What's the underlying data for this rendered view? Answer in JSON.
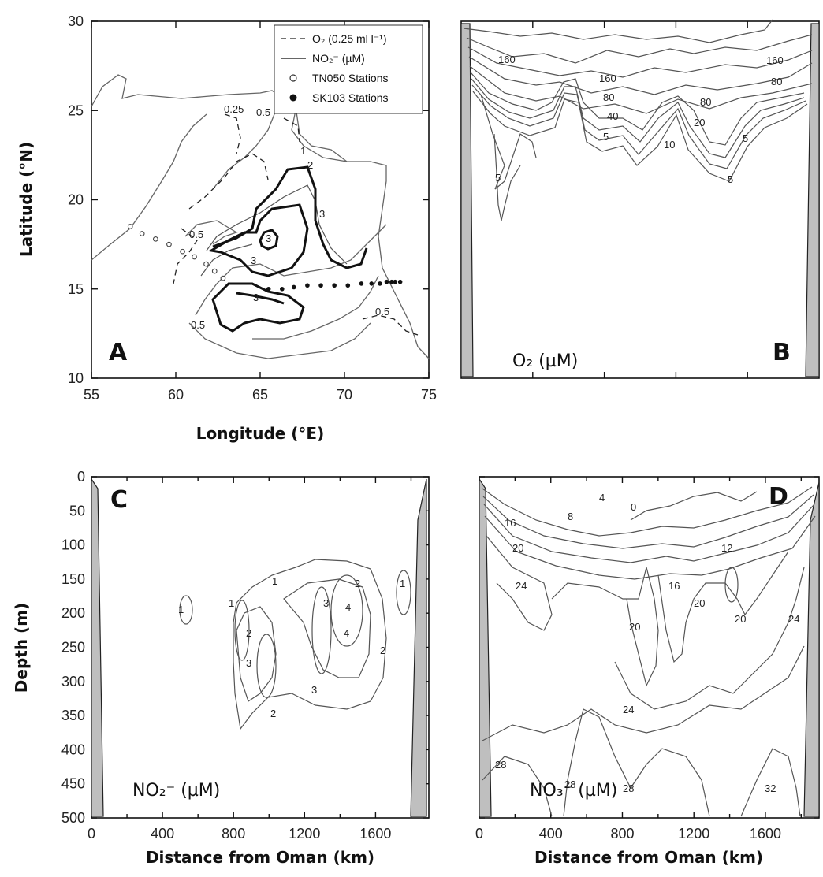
{
  "chart_data": [
    {
      "panel": "A",
      "type": "map",
      "xlabel": "Longitude (°E)",
      "ylabel": "Latitude (°N)",
      "xlim": [
        55,
        75
      ],
      "ylim": [
        10,
        30
      ],
      "xticks": [
        "55",
        "60",
        "65",
        "70",
        "75"
      ],
      "yticks": [
        "10",
        "15",
        "20",
        "25",
        "30"
      ],
      "legend": {
        "placement": "top-right",
        "entries": [
          {
            "symbol": "dashed-line",
            "label": "O₂ (0.25 ml l⁻¹)"
          },
          {
            "symbol": "solid-line",
            "label": "NO₂⁻ (µM)"
          },
          {
            "symbol": "open-circle",
            "label": "TN050 Stations"
          },
          {
            "symbol": "filled-circle",
            "label": "SK103 Stations"
          }
        ]
      },
      "contour_labels": [
        "0.25",
        "0.5",
        "1",
        "2",
        "3",
        "3",
        "3",
        "3",
        "0.5",
        "0.5",
        "0.5"
      ],
      "stations": {
        "TN050": [
          [
            57.3,
            18.5
          ],
          [
            58.0,
            18.1
          ],
          [
            58.8,
            17.8
          ],
          [
            59.6,
            17.5
          ],
          [
            60.4,
            17.1
          ],
          [
            61.1,
            16.8
          ],
          [
            61.8,
            16.4
          ],
          [
            62.3,
            16.0
          ],
          [
            62.8,
            15.6
          ]
        ],
        "SK103": [
          [
            65.5,
            15.0
          ],
          [
            66.3,
            15.0
          ],
          [
            67.0,
            15.1
          ],
          [
            67.8,
            15.2
          ],
          [
            68.6,
            15.2
          ],
          [
            69.4,
            15.2
          ],
          [
            70.2,
            15.2
          ],
          [
            71.0,
            15.3
          ],
          [
            71.6,
            15.3
          ],
          [
            72.1,
            15.3
          ],
          [
            72.5,
            15.4
          ],
          [
            72.8,
            15.4
          ],
          [
            73.0,
            15.4
          ],
          [
            73.3,
            15.4
          ]
        ]
      },
      "panel_label": "A"
    },
    {
      "panel": "B",
      "type": "contour",
      "field": "O₂ (µM)",
      "contour_labels": [
        "160",
        "160",
        "160",
        "80",
        "80",
        "80",
        "40",
        "20",
        "10",
        "5",
        "5",
        "5",
        "5"
      ],
      "panel_label": "B"
    },
    {
      "panel": "C",
      "type": "contour",
      "field": "NO₂⁻ (µM)",
      "xlabel": "Distance from Oman (km)",
      "ylabel": "Depth (m)",
      "xlim": [
        0,
        1900
      ],
      "ylim": [
        500,
        0
      ],
      "xticks": [
        "0",
        "400",
        "800",
        "1200",
        "1600"
      ],
      "yticks": [
        "0",
        "50",
        "100",
        "150",
        "200",
        "250",
        "300",
        "350",
        "400",
        "450",
        "500"
      ],
      "contour_labels": [
        "1",
        "1",
        "1",
        "2",
        "2",
        "2",
        "2",
        "3",
        "3",
        "3",
        "4",
        "4",
        "1"
      ],
      "panel_label": "C"
    },
    {
      "panel": "D",
      "type": "contour",
      "field": "NO₃⁻ (µM)",
      "xlabel": "Distance from Oman (km)",
      "xlim": [
        0,
        1900
      ],
      "ylim": [
        500,
        0
      ],
      "xticks": [
        "0",
        "400",
        "800",
        "1200",
        "1600"
      ],
      "contour_labels": [
        "0",
        "4",
        "8",
        "12",
        "16",
        "16",
        "20",
        "20",
        "20",
        "20",
        "24",
        "24",
        "24",
        "28",
        "28",
        "28",
        "32"
      ],
      "panel_label": "D"
    }
  ]
}
